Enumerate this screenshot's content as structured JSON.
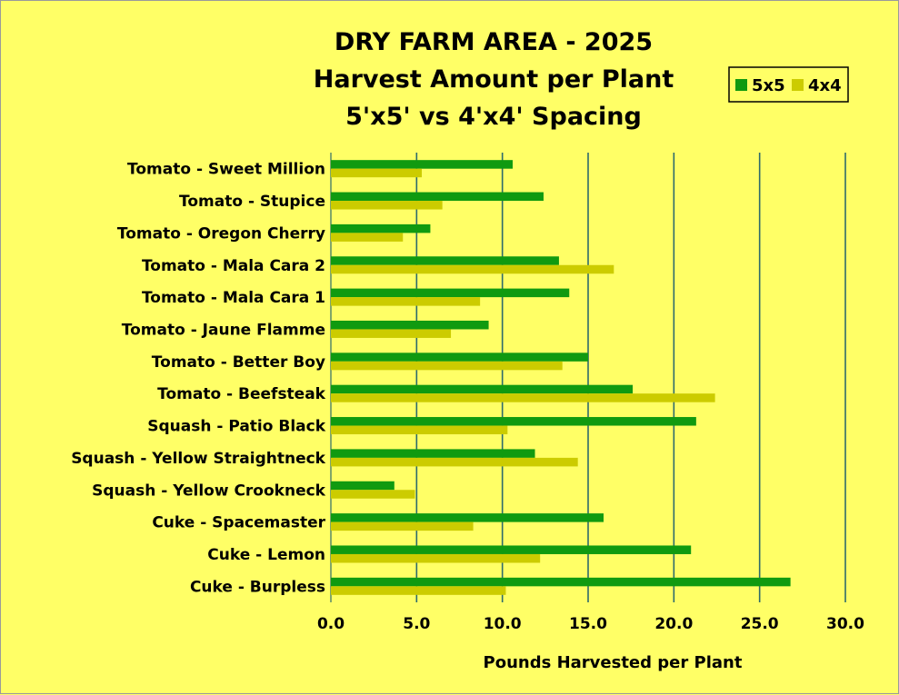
{
  "chart_data": {
    "type": "bar",
    "orientation": "horizontal",
    "title_lines": [
      "DRY FARM AREA - 2025",
      "Harvest Amount per Plant",
      "5'x5' vs 4'x4' Spacing"
    ],
    "xlabel": "Pounds Harvested per Plant",
    "ylabel": "",
    "xlim": [
      0,
      30
    ],
    "xticks": [
      "0.0",
      "5.0",
      "10.0",
      "15.0",
      "20.0",
      "25.0",
      "30.0"
    ],
    "grid": "vertical",
    "legend_position": "top-right",
    "categories": [
      "Tomato - Sweet Million",
      "Tomato - Stupice",
      "Tomato - Oregon Cherry",
      "Tomato - Mala Cara 2",
      "Tomato - Mala Cara 1",
      "Tomato - Jaune Flamme",
      "Tomato - Better Boy",
      "Tomato - Beefsteak",
      "Squash - Patio Black",
      "Squash - Yellow Straightneck",
      "Squash - Yellow Crookneck",
      "Cuke - Spacemaster",
      "Cuke - Lemon",
      "Cuke - Burpless"
    ],
    "series": [
      {
        "name": "5x5",
        "color": "#109a10",
        "values": [
          10.6,
          12.4,
          5.8,
          13.3,
          13.9,
          9.2,
          15.0,
          17.6,
          21.3,
          11.9,
          3.7,
          15.9,
          21.0,
          26.8
        ]
      },
      {
        "name": "4x4",
        "color": "#cccc00",
        "values": [
          5.3,
          6.5,
          4.2,
          16.5,
          8.7,
          7.0,
          13.5,
          22.4,
          10.3,
          14.4,
          4.9,
          8.3,
          12.2,
          10.2
        ]
      }
    ]
  },
  "colors": {
    "background": "#ffff66",
    "gridline": "#2e6b6b",
    "legend_border": "#000000"
  }
}
